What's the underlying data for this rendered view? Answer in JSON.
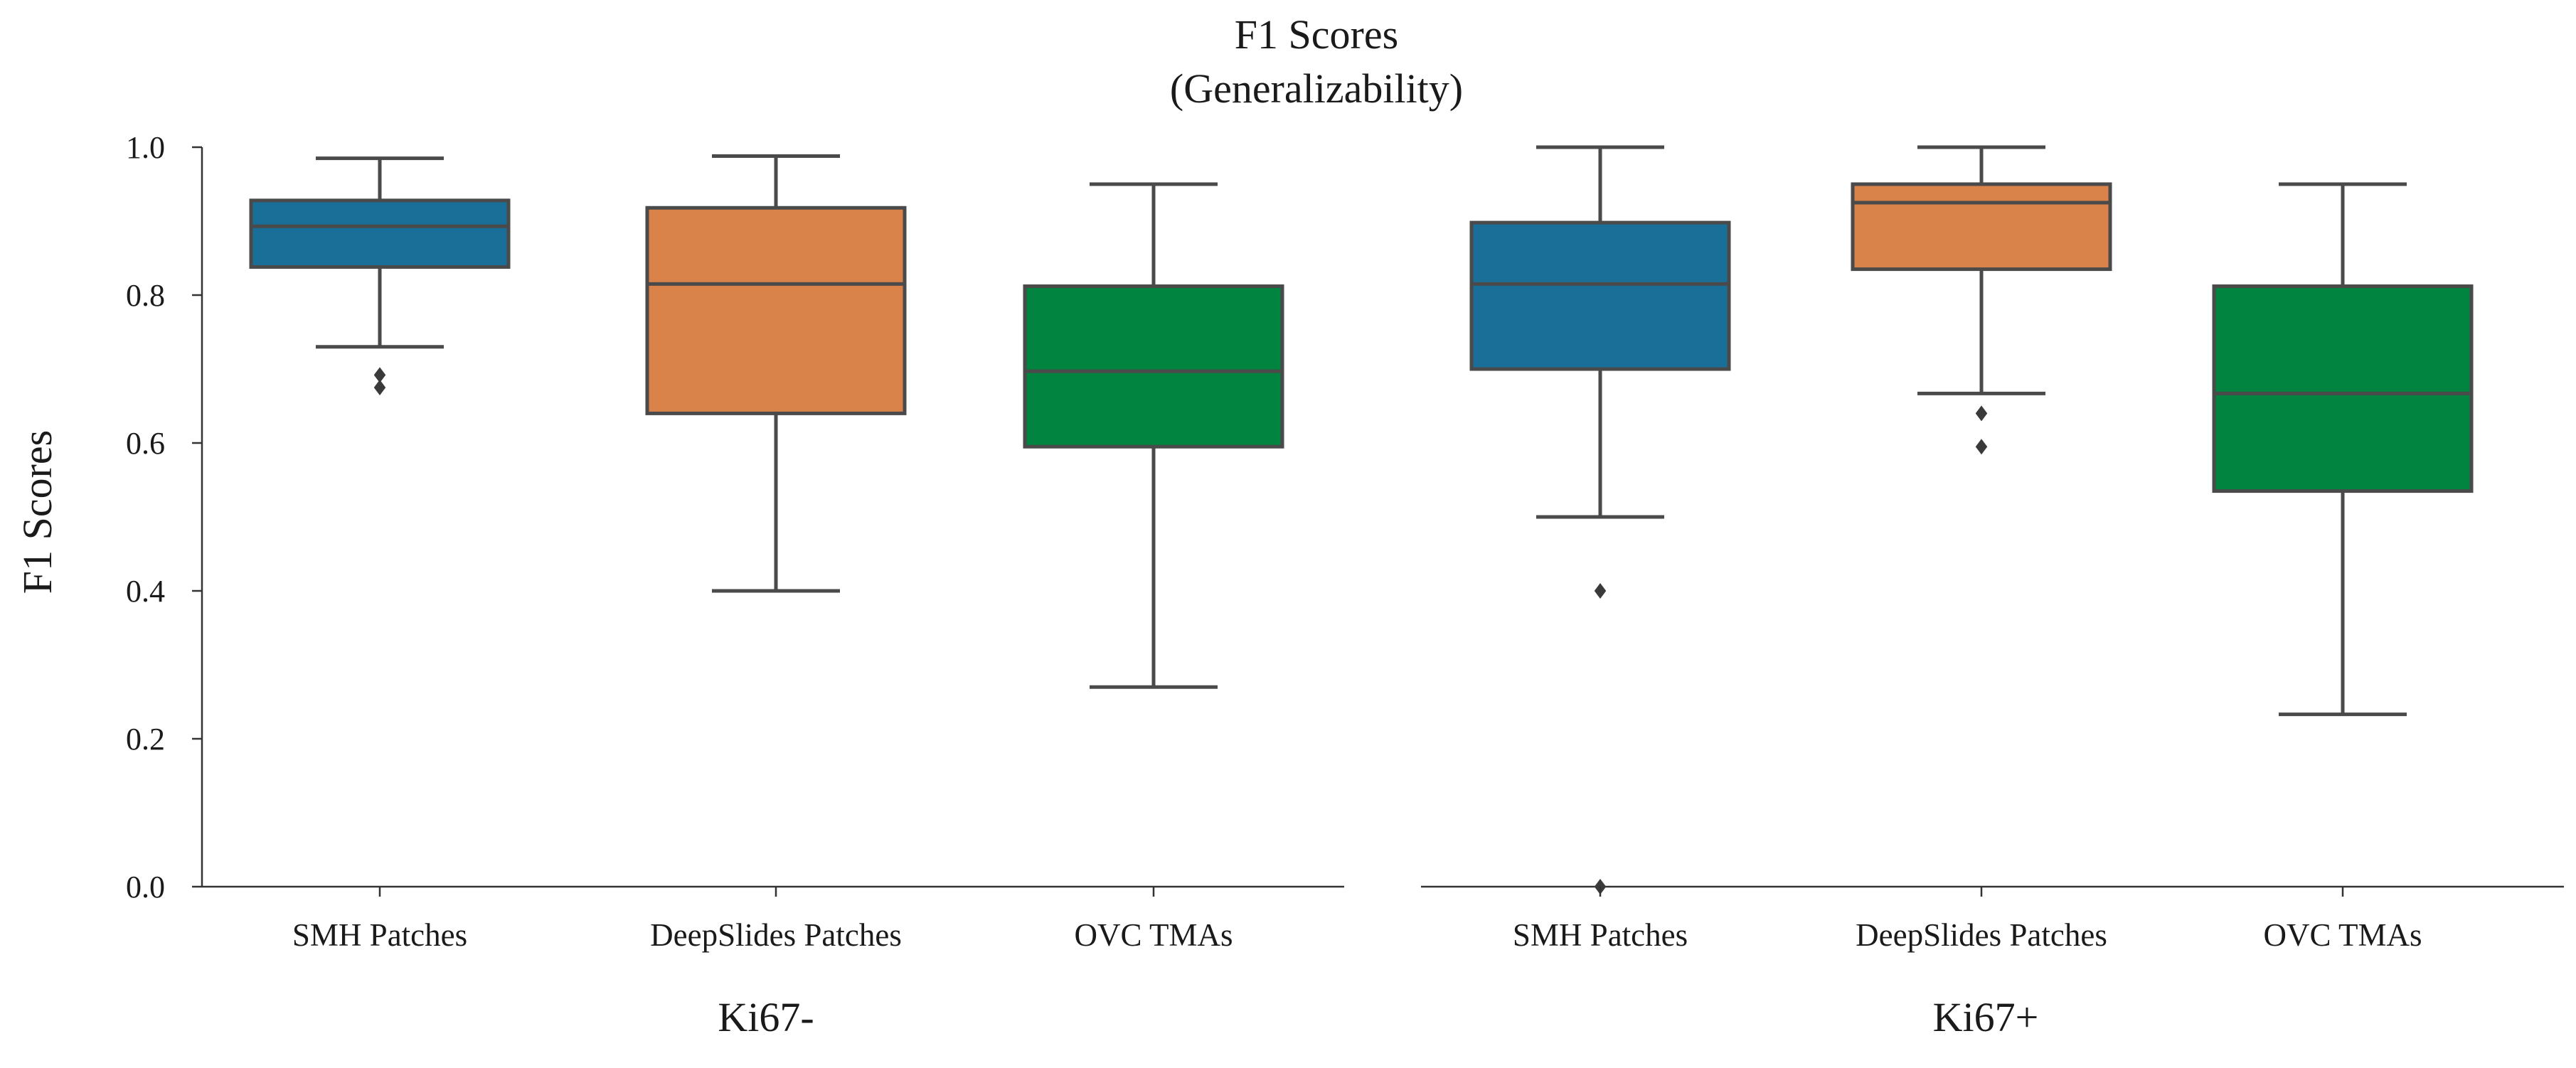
{
  "chart_data": {
    "type": "box",
    "title": "F1 Scores",
    "subtitle": "(Generalizability)",
    "ylabel": "F1 Scores",
    "ylim": [
      0.0,
      1.0
    ],
    "yticks": [
      "0.0",
      "0.2",
      "0.4",
      "0.6",
      "0.8",
      "1.0"
    ],
    "ytick_values": [
      0.0,
      0.2,
      0.4,
      0.6,
      0.8,
      1.0
    ],
    "colors": {
      "SMH Patches": "#1a6f98",
      "DeepSlides Patches": "#d9834a",
      "OVC TMAs": "#00843f"
    },
    "panels": [
      {
        "label": "Ki67-",
        "boxes": [
          {
            "category": "SMH Patches",
            "whisker_low": 0.73,
            "q1": 0.838,
            "median": 0.893,
            "q3": 0.928,
            "whisker_high": 0.985,
            "outliers": [
              0.675,
              0.692
            ]
          },
          {
            "category": "DeepSlides Patches",
            "whisker_low": 0.4,
            "q1": 0.64,
            "median": 0.815,
            "q3": 0.918,
            "whisker_high": 0.988,
            "outliers": []
          },
          {
            "category": "OVC TMAs",
            "whisker_low": 0.27,
            "q1": 0.595,
            "median": 0.697,
            "q3": 0.812,
            "whisker_high": 0.95,
            "outliers": []
          }
        ]
      },
      {
        "label": "Ki67+",
        "boxes": [
          {
            "category": "SMH Patches",
            "whisker_low": 0.5,
            "q1": 0.7,
            "median": 0.815,
            "q3": 0.898,
            "whisker_high": 1.0,
            "outliers": [
              0.4,
              0.0
            ]
          },
          {
            "category": "DeepSlides Patches",
            "whisker_low": 0.667,
            "q1": 0.835,
            "median": 0.925,
            "q3": 0.95,
            "whisker_high": 1.0,
            "outliers": [
              0.64,
              0.595
            ]
          },
          {
            "category": "OVC TMAs",
            "whisker_low": 0.233,
            "q1": 0.535,
            "median": 0.667,
            "q3": 0.812,
            "whisker_high": 0.95,
            "outliers": []
          }
        ]
      }
    ]
  }
}
